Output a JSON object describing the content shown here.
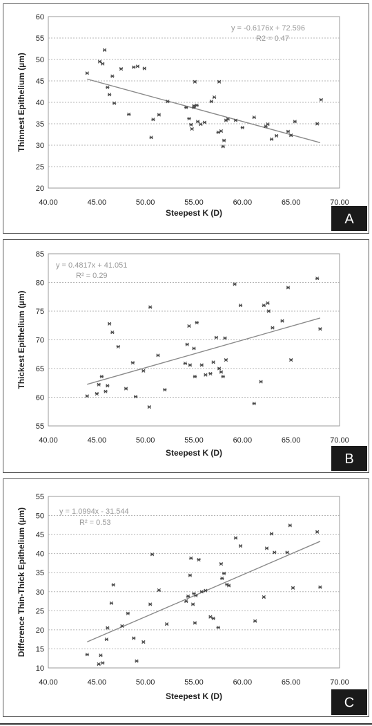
{
  "chart_data": [
    {
      "type": "scatter",
      "panel_label": "A",
      "xlabel": "Steepest K (D)",
      "ylabel": "Thinnest Epithelium (µm)",
      "xlim": [
        40,
        70
      ],
      "ylim": [
        20,
        60
      ],
      "xticks": [
        "40.00",
        "45.00",
        "50.00",
        "55.00",
        "60.00",
        "65.00",
        "70.00"
      ],
      "yticks": [
        "20",
        "25",
        "30",
        "35",
        "40",
        "45",
        "50",
        "55",
        "60"
      ],
      "equation": "y = -0.6176x + 72.596",
      "r2": "R2 = 0.47",
      "trendline": {
        "slope": -0.6176,
        "intercept": 72.596,
        "x_range": [
          44,
          68
        ]
      },
      "grid": true,
      "points": [
        [
          44.0,
          46.8
        ],
        [
          45.3,
          49.5
        ],
        [
          45.6,
          49.0
        ],
        [
          45.8,
          52.2
        ],
        [
          46.1,
          43.5
        ],
        [
          46.3,
          41.8
        ],
        [
          46.6,
          46.1
        ],
        [
          46.8,
          39.8
        ],
        [
          47.5,
          47.8
        ],
        [
          48.3,
          37.2
        ],
        [
          48.8,
          48.2
        ],
        [
          49.2,
          48.4
        ],
        [
          49.9,
          47.9
        ],
        [
          50.6,
          31.8
        ],
        [
          50.8,
          36.0
        ],
        [
          51.4,
          37.1
        ],
        [
          52.3,
          40.2
        ],
        [
          54.2,
          38.8
        ],
        [
          54.5,
          36.2
        ],
        [
          54.7,
          34.8
        ],
        [
          54.8,
          33.8
        ],
        [
          55.0,
          39.2
        ],
        [
          55.0,
          38.8
        ],
        [
          55.1,
          44.8
        ],
        [
          55.3,
          39.3
        ],
        [
          55.4,
          35.5
        ],
        [
          55.7,
          34.9
        ],
        [
          56.1,
          35.3
        ],
        [
          56.8,
          40.2
        ],
        [
          57.1,
          41.2
        ],
        [
          57.5,
          33.0
        ],
        [
          57.6,
          44.8
        ],
        [
          57.8,
          33.3
        ],
        [
          58.0,
          29.7
        ],
        [
          58.1,
          31.1
        ],
        [
          58.3,
          35.8
        ],
        [
          58.5,
          36.1
        ],
        [
          59.3,
          35.8
        ],
        [
          60.0,
          34.1
        ],
        [
          61.2,
          36.5
        ],
        [
          62.4,
          34.4
        ],
        [
          62.6,
          34.9
        ],
        [
          63.0,
          31.4
        ],
        [
          63.5,
          32.2
        ],
        [
          64.7,
          33.2
        ],
        [
          65.0,
          32.3
        ],
        [
          65.4,
          35.5
        ],
        [
          67.7,
          35.0
        ],
        [
          68.1,
          40.6
        ]
      ]
    },
    {
      "type": "scatter",
      "panel_label": "B",
      "xlabel": "Steepest K (D)",
      "ylabel": "Thickest Epithelium (µm)",
      "xlim": [
        40,
        70
      ],
      "ylim": [
        55,
        85
      ],
      "xticks": [
        "40.00",
        "45.00",
        "50.00",
        "55.00",
        "60.00",
        "65.00",
        "70.00"
      ],
      "yticks": [
        "55",
        "60",
        "65",
        "70",
        "75",
        "80",
        "85"
      ],
      "equation": "y = 0.4817x + 41.051",
      "r2": "R² = 0.29",
      "trendline": {
        "slope": 0.4817,
        "intercept": 41.051,
        "x_range": [
          44,
          68
        ]
      },
      "grid": true,
      "points": [
        [
          44.0,
          60.2
        ],
        [
          45.0,
          60.6
        ],
        [
          45.2,
          62.2
        ],
        [
          45.5,
          63.6
        ],
        [
          45.9,
          61.0
        ],
        [
          46.1,
          62.0
        ],
        [
          46.3,
          72.8
        ],
        [
          46.6,
          71.3
        ],
        [
          47.2,
          68.8
        ],
        [
          48.0,
          61.5
        ],
        [
          48.7,
          66.0
        ],
        [
          49.0,
          60.1
        ],
        [
          49.8,
          64.6
        ],
        [
          50.4,
          58.3
        ],
        [
          50.5,
          75.7
        ],
        [
          51.3,
          67.3
        ],
        [
          52.0,
          61.3
        ],
        [
          54.1,
          65.9
        ],
        [
          54.3,
          69.2
        ],
        [
          54.5,
          72.4
        ],
        [
          54.6,
          65.6
        ],
        [
          55.0,
          68.5
        ],
        [
          55.1,
          63.6
        ],
        [
          55.3,
          73.0
        ],
        [
          55.8,
          65.6
        ],
        [
          56.2,
          63.9
        ],
        [
          56.7,
          64.1
        ],
        [
          57.0,
          66.1
        ],
        [
          57.3,
          70.4
        ],
        [
          57.6,
          65.0
        ],
        [
          57.8,
          64.4
        ],
        [
          58.0,
          63.6
        ],
        [
          58.2,
          70.3
        ],
        [
          58.3,
          66.5
        ],
        [
          59.2,
          79.7
        ],
        [
          59.8,
          76.0
        ],
        [
          61.2,
          58.9
        ],
        [
          61.9,
          62.7
        ],
        [
          62.2,
          76.0
        ],
        [
          62.6,
          76.4
        ],
        [
          62.7,
          75.0
        ],
        [
          63.1,
          72.1
        ],
        [
          64.1,
          73.3
        ],
        [
          64.7,
          79.1
        ],
        [
          65.0,
          66.5
        ],
        [
          67.7,
          80.7
        ],
        [
          68.0,
          71.9
        ]
      ]
    },
    {
      "type": "scatter",
      "panel_label": "C",
      "xlabel": "Steepest K (D)",
      "ylabel": "Difference Thin-Thick Epithelium (µm)",
      "xlim": [
        40,
        70
      ],
      "ylim": [
        10,
        55
      ],
      "xticks": [
        "40.00",
        "45.00",
        "50.00",
        "55.00",
        "60.00",
        "65.00",
        "70.00"
      ],
      "yticks": [
        "10",
        "15",
        "20",
        "25",
        "30",
        "35",
        "40",
        "45",
        "50",
        "55"
      ],
      "equation": "y = 1.0994x - 31.544",
      "r2": "R² = 0.53",
      "trendline": {
        "slope": 1.0994,
        "intercept": -31.544,
        "x_range": [
          44,
          68
        ]
      },
      "grid": true,
      "points": [
        [
          44.0,
          13.5
        ],
        [
          45.2,
          11.0
        ],
        [
          45.4,
          13.3
        ],
        [
          45.6,
          11.3
        ],
        [
          46.0,
          17.5
        ],
        [
          46.1,
          20.5
        ],
        [
          46.5,
          27.0
        ],
        [
          46.7,
          31.8
        ],
        [
          47.6,
          21.0
        ],
        [
          48.2,
          24.3
        ],
        [
          48.8,
          17.8
        ],
        [
          49.1,
          11.8
        ],
        [
          49.8,
          16.8
        ],
        [
          50.5,
          26.7
        ],
        [
          50.7,
          39.8
        ],
        [
          51.4,
          30.4
        ],
        [
          52.2,
          21.5
        ],
        [
          54.2,
          27.5
        ],
        [
          54.4,
          28.8
        ],
        [
          54.6,
          34.3
        ],
        [
          54.7,
          38.8
        ],
        [
          54.9,
          26.7
        ],
        [
          55.0,
          29.5
        ],
        [
          55.1,
          21.8
        ],
        [
          55.2,
          29.0
        ],
        [
          55.5,
          38.4
        ],
        [
          55.8,
          30.0
        ],
        [
          56.2,
          30.3
        ],
        [
          56.7,
          23.4
        ],
        [
          57.0,
          23.0
        ],
        [
          57.5,
          20.6
        ],
        [
          57.8,
          37.3
        ],
        [
          57.9,
          33.5
        ],
        [
          58.1,
          34.8
        ],
        [
          58.4,
          31.9
        ],
        [
          58.6,
          31.6
        ],
        [
          59.3,
          44.1
        ],
        [
          59.8,
          42.0
        ],
        [
          61.3,
          22.3
        ],
        [
          62.2,
          28.6
        ],
        [
          62.5,
          41.4
        ],
        [
          63.0,
          45.2
        ],
        [
          63.3,
          40.3
        ],
        [
          64.6,
          40.3
        ],
        [
          64.9,
          47.4
        ],
        [
          65.2,
          31.0
        ],
        [
          67.7,
          45.7
        ],
        [
          68.0,
          31.2
        ]
      ]
    }
  ]
}
